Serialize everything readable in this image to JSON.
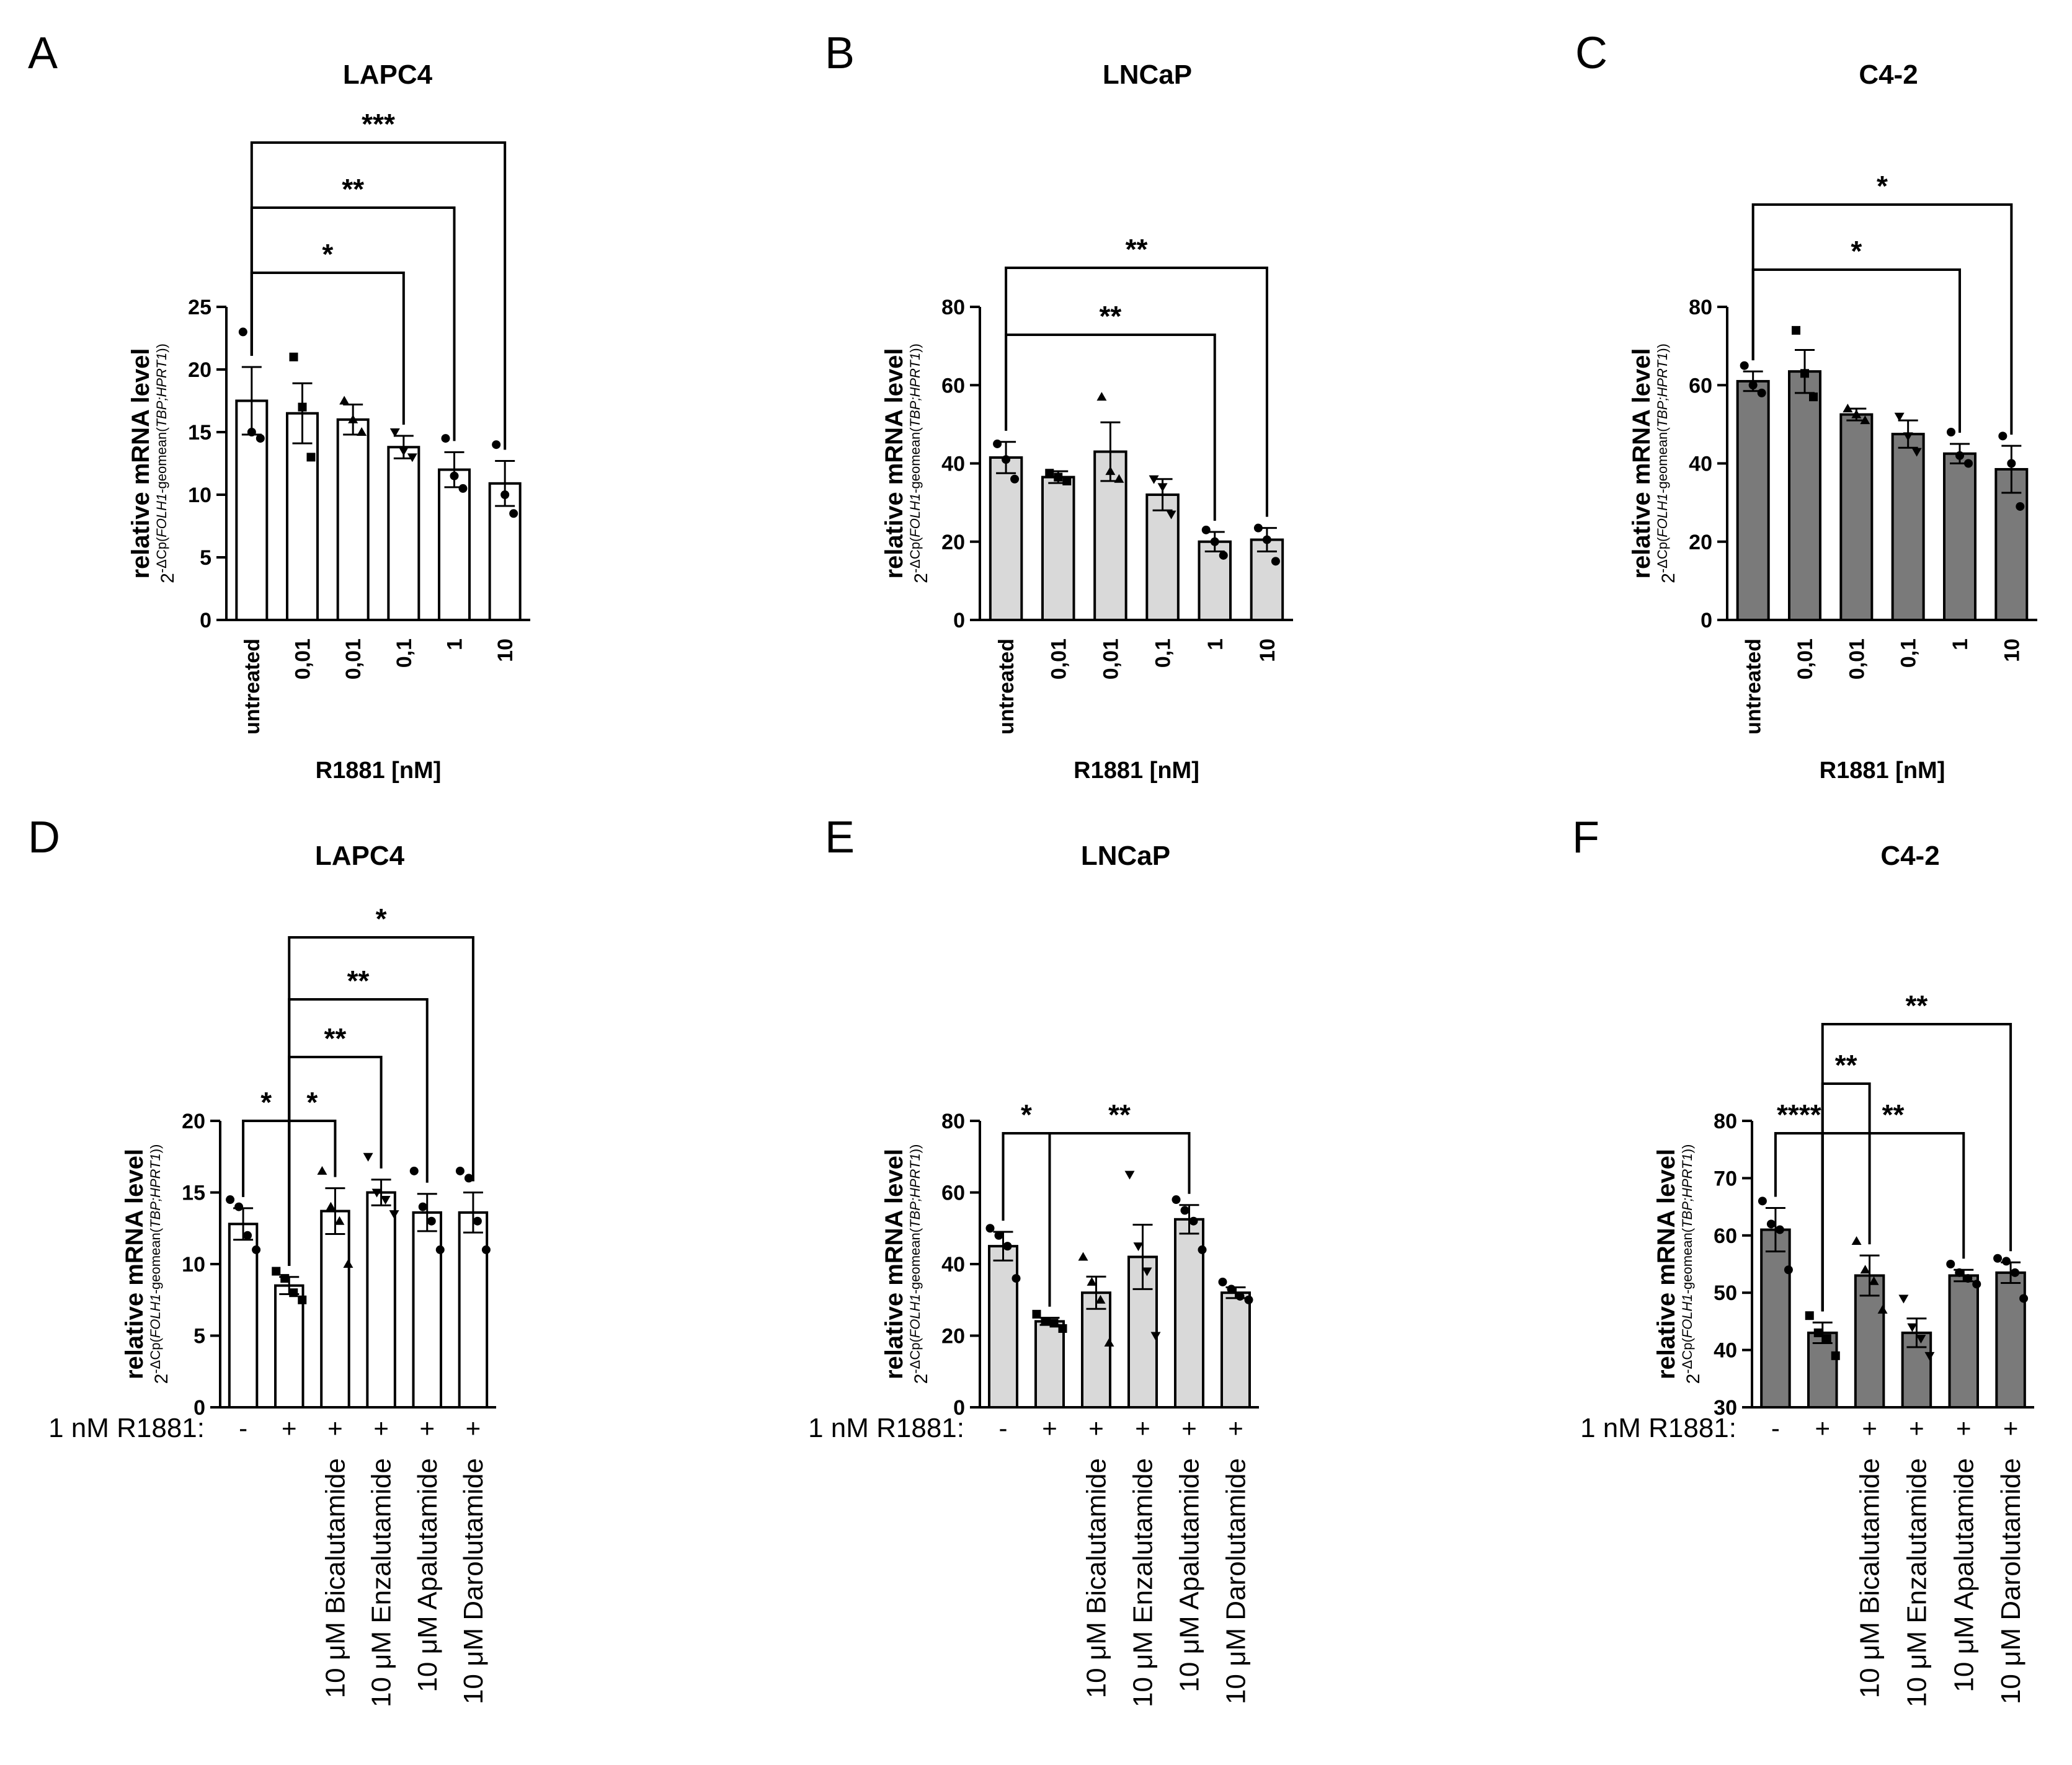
{
  "styles": {
    "white": "#ffffff",
    "light": "#d9d9d9",
    "dark": "#7a7a7a"
  },
  "chart_data": [
    {
      "panel": "A",
      "title": "LAPC4",
      "type": "bar",
      "style": "white",
      "xlabel": "R1881 [nM]",
      "ylabel_main": "relative mRNA level",
      "ylabel_sub": {
        "base": "2",
        "sup": "-ΔCp(",
        "ital1": "FOLH1",
        "mid": "-geomean(",
        "ital2": "TBP;HPRT1",
        "end": "))"
      },
      "ylim": [
        0,
        25
      ],
      "yticks": [
        0,
        5,
        10,
        15,
        20,
        25
      ],
      "categories": [
        "untreated",
        "0,01",
        "0,01",
        "0,1",
        "1",
        "10"
      ],
      "values": [
        17.5,
        16.5,
        16.0,
        13.8,
        12.0,
        10.9
      ],
      "errors": [
        2.7,
        2.4,
        1.2,
        0.9,
        1.4,
        1.8
      ],
      "points": [
        [
          23,
          15,
          14.5
        ],
        [
          21,
          17,
          13
        ],
        [
          17.5,
          16,
          15
        ],
        [
          15,
          13.5,
          13
        ],
        [
          14.5,
          11.5,
          10.5
        ],
        [
          14,
          10,
          8.5
        ]
      ],
      "significance": [
        {
          "from": 0,
          "to": 3,
          "label": "*"
        },
        {
          "from": 0,
          "to": 4,
          "label": "**"
        },
        {
          "from": 0,
          "to": 5,
          "label": "***"
        }
      ]
    },
    {
      "panel": "B",
      "title": "LNCaP",
      "type": "bar",
      "style": "light",
      "xlabel": "R1881 [nM]",
      "ylabel_main": "relative mRNA level",
      "ylabel_sub": {
        "base": "2",
        "sup": "-ΔCp(",
        "ital1": "FOLH1",
        "mid": "-geomean(",
        "ital2": "TBP;HPRT1",
        "end": "))"
      },
      "ylim": [
        0,
        80
      ],
      "yticks": [
        0,
        20,
        40,
        60,
        80
      ],
      "categories": [
        "untreated",
        "0,01",
        "0,01",
        "0,1",
        "1",
        "10"
      ],
      "values": [
        41.5,
        36.5,
        43.0,
        32.0,
        20.0,
        20.5
      ],
      "errors": [
        4.0,
        1.5,
        7.5,
        4.0,
        2.5,
        3.0
      ],
      "points": [
        [
          45,
          41,
          36
        ],
        [
          37.5,
          36.5,
          35.5
        ],
        [
          57,
          38,
          36
        ],
        [
          36,
          34,
          27
        ],
        [
          23,
          20,
          16.5
        ],
        [
          23.5,
          20.5,
          15
        ]
      ],
      "significance": [
        {
          "from": 0,
          "to": 4,
          "label": "**"
        },
        {
          "from": 0,
          "to": 5,
          "label": "**"
        }
      ]
    },
    {
      "panel": "C",
      "title": "C4-2",
      "type": "bar",
      "style": "dark",
      "xlabel": "R1881 [nM]",
      "ylabel_main": "relative mRNA level",
      "ylabel_sub": {
        "base": "2",
        "sup": "-ΔCp(",
        "ital1": "FOLH1",
        "mid": "-geomean(",
        "ital2": "TBP;HPRT1",
        "end": "))"
      },
      "ylim": [
        0,
        80
      ],
      "yticks": [
        0,
        20,
        40,
        60,
        80
      ],
      "categories": [
        "untreated",
        "0,01",
        "0,01",
        "0,1",
        "1",
        "10"
      ],
      "values": [
        61.0,
        63.5,
        52.5,
        47.5,
        42.5,
        38.5
      ],
      "errors": [
        2.5,
        5.5,
        1.5,
        3.5,
        2.5,
        6.0
      ],
      "points": [
        [
          65,
          60,
          58
        ],
        [
          74,
          63,
          57
        ],
        [
          54,
          52.5,
          51
        ],
        [
          52,
          47,
          43
        ],
        [
          48,
          42,
          40
        ],
        [
          47,
          40,
          29
        ]
      ],
      "significance": [
        {
          "from": 0,
          "to": 4,
          "label": "*"
        },
        {
          "from": 0,
          "to": 5,
          "label": "*"
        }
      ]
    },
    {
      "panel": "D",
      "title": "LAPC4",
      "type": "bar",
      "style": "white",
      "row_label": "1 nM R1881:",
      "ylabel_main": "relative mRNA level",
      "ylabel_sub": {
        "base": "2",
        "sup": "-ΔCp(",
        "ital1": "FOLH1",
        "mid": "-geomean(",
        "ital2": "TBP;HPRT1",
        "end": "))"
      },
      "ylim": [
        0,
        20
      ],
      "yticks": [
        0,
        5,
        10,
        15,
        20
      ],
      "r1881": [
        "-",
        "+",
        "+",
        "+",
        "+",
        "+"
      ],
      "categories": [
        "",
        "",
        "10 μM Bicalutamide",
        "10 μM Enzalutamide",
        "10 μM Apalutamide",
        "10 μM Darolutamide"
      ],
      "values": [
        12.8,
        8.5,
        13.7,
        15.0,
        13.6,
        13.6
      ],
      "errors": [
        1.1,
        0.6,
        1.6,
        0.9,
        1.3,
        1.4
      ],
      "points": [
        [
          14.5,
          14,
          12,
          11
        ],
        [
          9.5,
          9,
          8,
          7.5
        ],
        [
          16.5,
          14,
          13,
          10
        ],
        [
          17.5,
          15,
          14.5,
          13.5
        ],
        [
          16.5,
          14,
          13,
          11
        ],
        [
          16.5,
          16,
          13,
          11
        ]
      ],
      "significance": [
        {
          "from": 0,
          "to": 1,
          "label": "*"
        },
        {
          "from": 1,
          "to": 2,
          "label": "*"
        },
        {
          "from": 1,
          "to": 3,
          "label": "**"
        },
        {
          "from": 1,
          "to": 4,
          "label": "**"
        },
        {
          "from": 1,
          "to": 5,
          "label": "*"
        }
      ]
    },
    {
      "panel": "E",
      "title": "LNCaP",
      "type": "bar",
      "style": "light",
      "row_label": "1 nM R1881:",
      "ylabel_main": "relative mRNA level",
      "ylabel_sub": {
        "base": "2",
        "sup": "-ΔCp(",
        "ital1": "FOLH1",
        "mid": "-geomean(",
        "ital2": "TBP;HPRT1",
        "end": "))"
      },
      "ylim": [
        0,
        80
      ],
      "yticks": [
        0,
        20,
        40,
        60,
        80
      ],
      "r1881": [
        "-",
        "+",
        "+",
        "+",
        "+",
        "+"
      ],
      "categories": [
        "",
        "",
        "10 μM Bicalutamide",
        "10 μM Enzalutamide",
        "10 μM Apalutamide",
        "10 μM Darolutamide"
      ],
      "values": [
        45.0,
        24.0,
        32.0,
        42.0,
        52.5,
        32.0
      ],
      "errors": [
        4.0,
        1.0,
        4.5,
        9.0,
        4.0,
        1.5
      ],
      "points": [
        [
          50,
          48,
          45,
          36
        ],
        [
          26,
          24,
          23.5,
          22
        ],
        [
          42,
          35,
          30,
          18
        ],
        [
          65,
          45,
          38,
          20
        ],
        [
          58,
          55,
          52,
          44
        ],
        [
          35,
          33,
          31,
          30
        ]
      ],
      "significance": [
        {
          "from": 0,
          "to": 1,
          "label": "*"
        },
        {
          "from": 1,
          "to": 4,
          "label": "**"
        }
      ]
    },
    {
      "panel": "F",
      "title": "C4-2",
      "type": "bar",
      "style": "dark",
      "row_label": "1 nM R1881:",
      "ylabel_main": "relative mRNA level",
      "ylabel_sub": {
        "base": "2",
        "sup": "-ΔCp(",
        "ital1": "FOLH1",
        "mid": "-geomean(",
        "ital2": "TBP;HPRT1",
        "end": "))"
      },
      "ylim": [
        30,
        80
      ],
      "yticks": [
        30,
        40,
        50,
        60,
        70,
        80
      ],
      "r1881": [
        "-",
        "+",
        "+",
        "+",
        "+",
        "+"
      ],
      "categories": [
        "",
        "",
        "10 μM Bicalutamide",
        "10 μM Enzalutamide",
        "10 μM Apalutamide",
        "10 μM Darolutamide"
      ],
      "values": [
        61.0,
        43.0,
        53.0,
        43.0,
        53.0,
        53.5
      ],
      "errors": [
        3.8,
        1.8,
        3.5,
        2.5,
        1.0,
        1.8
      ],
      "points": [
        [
          66,
          62,
          61,
          54
        ],
        [
          46,
          43,
          42,
          39
        ],
        [
          59,
          54,
          52,
          47
        ],
        [
          49,
          44,
          42,
          39
        ],
        [
          55,
          53.5,
          52.5,
          51.5
        ],
        [
          56,
          55.5,
          53.5,
          49
        ]
      ],
      "significance": [
        {
          "from": 0,
          "to": 1,
          "label": "****"
        },
        {
          "from": 1,
          "to": 2,
          "label": "**"
        },
        {
          "from": 1,
          "to": 4,
          "label": "**"
        },
        {
          "from": 1,
          "to": 5,
          "label": "**"
        }
      ]
    }
  ]
}
